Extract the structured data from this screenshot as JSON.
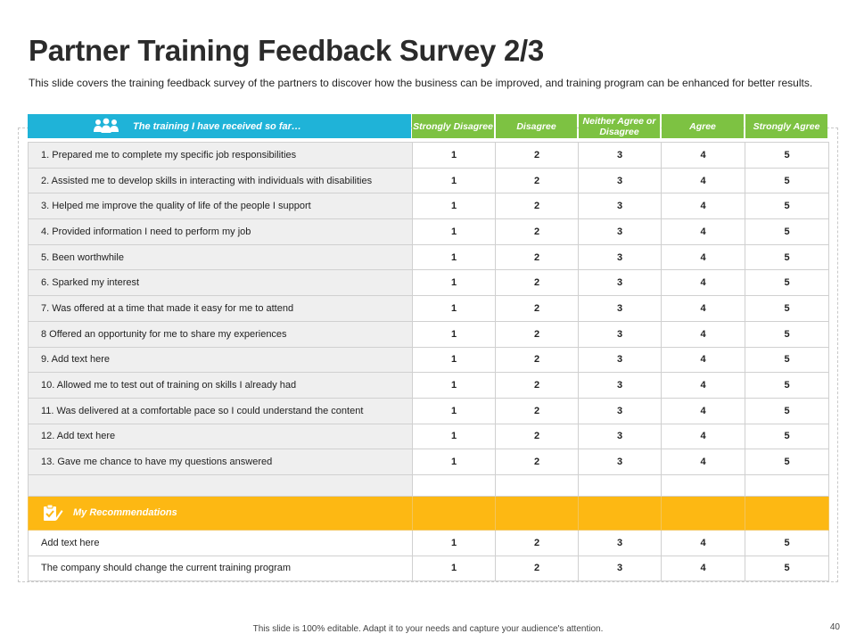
{
  "slide": {
    "title": "Partner Training Feedback Survey 2/3",
    "subtitle": "This slide covers the training feedback survey of the partners to discover how the business can be improved, and training program can be enhanced for better results.",
    "footer": "This slide is 100% editable. Adapt it to your needs and capture your audience's attention.",
    "page_number": "40"
  },
  "header": {
    "label": "The training I have received so far…",
    "icon": "people-icon",
    "color": "#1fb3d8"
  },
  "columns": {
    "color": "#7dc242",
    "items": [
      {
        "label": "Strongly Disagree"
      },
      {
        "label": "Disagree"
      },
      {
        "label": "Neither Agree or Disagree"
      },
      {
        "label": "Agree"
      },
      {
        "label": "Strongly Agree"
      }
    ]
  },
  "questions": [
    {
      "text": "1. Prepared me to complete my specific job responsibilities",
      "scores": [
        "1",
        "2",
        "3",
        "4",
        "5"
      ]
    },
    {
      "text": "2. Assisted me to develop skills in interacting with individuals with disabilities",
      "scores": [
        "1",
        "2",
        "3",
        "4",
        "5"
      ]
    },
    {
      "text": "3. Helped me improve the quality of life of the people I support",
      "scores": [
        "1",
        "2",
        "3",
        "4",
        "5"
      ]
    },
    {
      "text": "4. Provided information I need to perform my job",
      "scores": [
        "1",
        "2",
        "3",
        "4",
        "5"
      ]
    },
    {
      "text": "5. Been worthwhile",
      "scores": [
        "1",
        "2",
        "3",
        "4",
        "5"
      ]
    },
    {
      "text": "6. Sparked my interest",
      "scores": [
        "1",
        "2",
        "3",
        "4",
        "5"
      ]
    },
    {
      "text": "7. Was offered at a time that made it easy for me to attend",
      "scores": [
        "1",
        "2",
        "3",
        "4",
        "5"
      ]
    },
    {
      "text": "8 Offered an opportunity for me to share my experiences",
      "scores": [
        "1",
        "2",
        "3",
        "4",
        "5"
      ]
    },
    {
      "text": "9. Add text here",
      "scores": [
        "1",
        "2",
        "3",
        "4",
        "5"
      ]
    },
    {
      "text": "10. Allowed me to test out of training on skills I already had",
      "scores": [
        "1",
        "2",
        "3",
        "4",
        "5"
      ]
    },
    {
      "text": "11. Was delivered at a comfortable pace so I could understand the content",
      "scores": [
        "1",
        "2",
        "3",
        "4",
        "5"
      ]
    },
    {
      "text": "12. Add text here",
      "scores": [
        "1",
        "2",
        "3",
        "4",
        "5"
      ]
    },
    {
      "text": "13. Gave me chance to have my questions answered",
      "scores": [
        "1",
        "2",
        "3",
        "4",
        "5"
      ]
    }
  ],
  "recommendations": {
    "label": "My Recommendations",
    "icon": "clipboard-check-icon",
    "color": "#fdb813",
    "items": [
      {
        "text": "Add text here",
        "scores": [
          "1",
          "2",
          "3",
          "4",
          "5"
        ]
      },
      {
        "text": "The company should change the current training program",
        "scores": [
          "1",
          "2",
          "3",
          "4",
          "5"
        ]
      }
    ]
  }
}
